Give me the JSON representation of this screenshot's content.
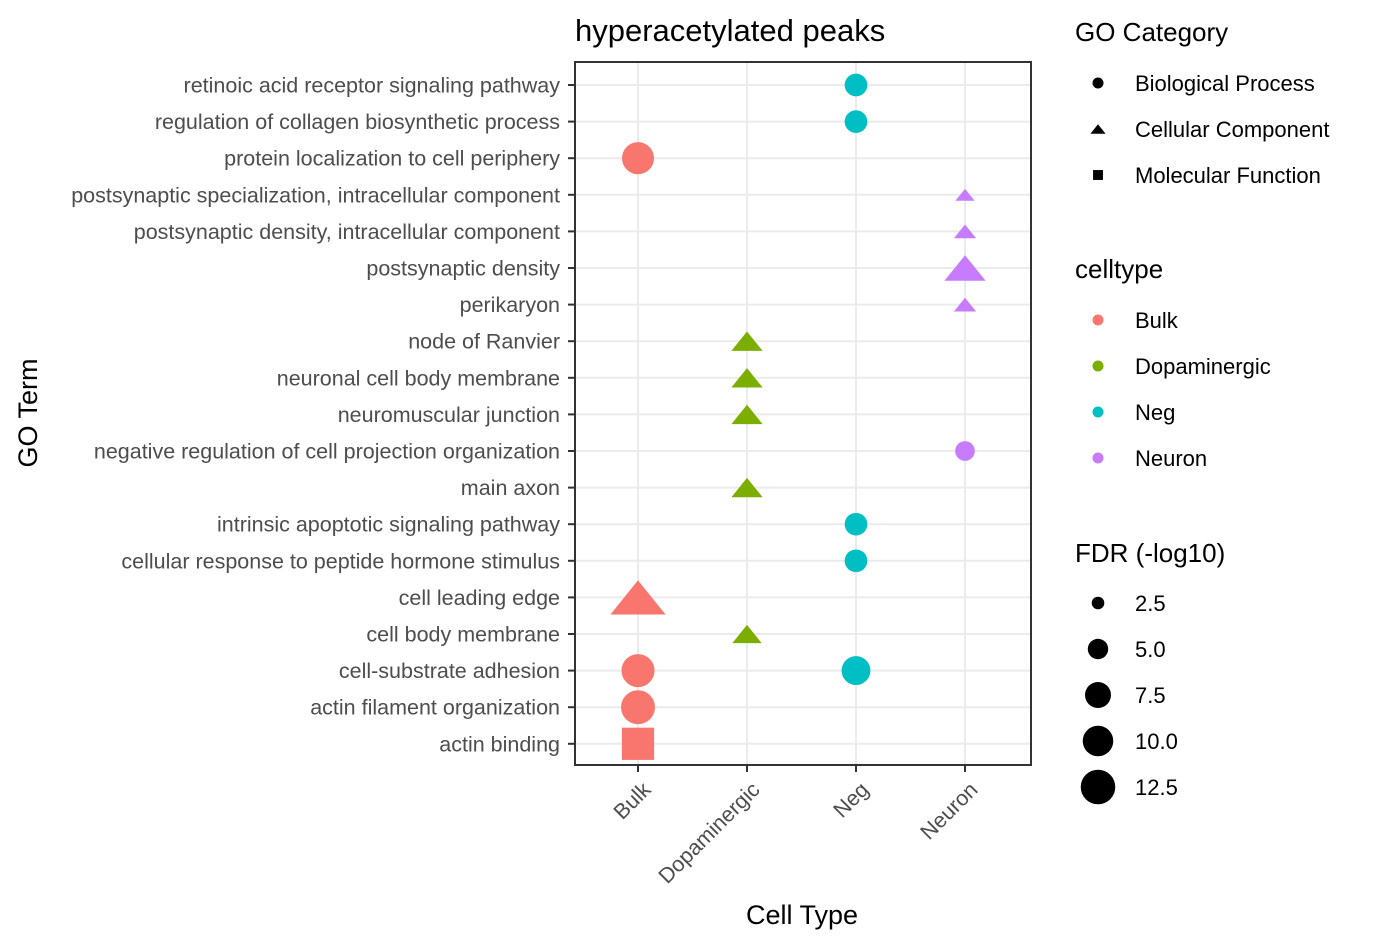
{
  "chart_data": {
    "type": "scatter",
    "title": "hyperacetylated peaks",
    "xlabel": "Cell Type",
    "ylabel": "GO Term",
    "categories": [
      "Bulk",
      "Dopaminergic",
      "Neg",
      "Neuron"
    ],
    "terms": [
      "retinoic acid receptor signaling pathway",
      "regulation of collagen biosynthetic process",
      "protein localization to cell periphery",
      "postsynaptic specialization, intracellular component",
      "postsynaptic density, intracellular component",
      "postsynaptic density",
      "perikaryon",
      "node of Ranvier",
      "neuronal cell body membrane",
      "neuromuscular junction",
      "negative regulation of cell projection organization",
      "main axon",
      "intrinsic apoptotic signaling pathway",
      "cellular response to peptide hormone stimulus",
      "cell leading edge",
      "cell body membrane",
      "cell-substrate adhesion",
      "actin filament organization",
      "actin binding"
    ],
    "points": [
      {
        "term": "retinoic acid receptor signaling pathway",
        "celltype": "Neg",
        "category": "Biological Process",
        "fdr": 5.0
      },
      {
        "term": "regulation of collagen biosynthetic process",
        "celltype": "Neg",
        "category": "Biological Process",
        "fdr": 5.0
      },
      {
        "term": "protein localization to cell periphery",
        "celltype": "Bulk",
        "category": "Biological Process",
        "fdr": 9.0
      },
      {
        "term": "postsynaptic specialization, intracellular component",
        "celltype": "Neuron",
        "category": "Cellular Component",
        "fdr": 2.5
      },
      {
        "term": "postsynaptic density, intracellular component",
        "celltype": "Neuron",
        "category": "Cellular Component",
        "fdr": 3.0
      },
      {
        "term": "postsynaptic density",
        "celltype": "Neuron",
        "category": "Cellular Component",
        "fdr": 8.0
      },
      {
        "term": "perikaryon",
        "celltype": "Neuron",
        "category": "Cellular Component",
        "fdr": 3.0
      },
      {
        "term": "node of Ranvier",
        "celltype": "Dopaminergic",
        "category": "Cellular Component",
        "fdr": 5.0
      },
      {
        "term": "neuronal cell body membrane",
        "celltype": "Dopaminergic",
        "category": "Cellular Component",
        "fdr": 5.0
      },
      {
        "term": "neuromuscular junction",
        "celltype": "Dopaminergic",
        "category": "Cellular Component",
        "fdr": 5.0
      },
      {
        "term": "negative regulation of cell projection organization",
        "celltype": "Neuron",
        "category": "Biological Process",
        "fdr": 4.0
      },
      {
        "term": "main axon",
        "celltype": "Dopaminergic",
        "category": "Cellular Component",
        "fdr": 5.0
      },
      {
        "term": "intrinsic apoptotic signaling pathway",
        "celltype": "Neg",
        "category": "Biological Process",
        "fdr": 5.0
      },
      {
        "term": "cellular response to peptide hormone stimulus",
        "celltype": "Neg",
        "category": "Biological Process",
        "fdr": 5.0
      },
      {
        "term": "cell leading edge",
        "celltype": "Bulk",
        "category": "Cellular Component",
        "fdr": 13.5
      },
      {
        "term": "cell body membrane",
        "celltype": "Dopaminergic",
        "category": "Cellular Component",
        "fdr": 4.5
      },
      {
        "term": "cell-substrate adhesion",
        "celltype": "Bulk",
        "category": "Biological Process",
        "fdr": 9.5
      },
      {
        "term": "cell-substrate adhesion",
        "celltype": "Neg",
        "category": "Biological Process",
        "fdr": 7.5
      },
      {
        "term": "actin filament organization",
        "celltype": "Bulk",
        "category": "Biological Process",
        "fdr": 10.0
      },
      {
        "term": "actin binding",
        "celltype": "Bulk",
        "category": "Molecular Function",
        "fdr": 11.0
      }
    ],
    "legends": {
      "shape": {
        "title": "GO Category",
        "entries": [
          {
            "label": "Biological Process",
            "shape": "circle"
          },
          {
            "label": "Cellular Component",
            "shape": "triangle"
          },
          {
            "label": "Molecular Function",
            "shape": "square"
          }
        ]
      },
      "color": {
        "title": "celltype",
        "entries": [
          {
            "label": "Bulk",
            "color": "#F8766D"
          },
          {
            "label": "Dopaminergic",
            "color": "#7CAE00"
          },
          {
            "label": "Neg",
            "color": "#00BFC4"
          },
          {
            "label": "Neuron",
            "color": "#C77CFF"
          }
        ]
      },
      "size": {
        "title": "FDR (-log10)",
        "entries": [
          {
            "label": "2.5",
            "value": 2.5
          },
          {
            "label": "5.0",
            "value": 5.0
          },
          {
            "label": "7.5",
            "value": 7.5
          },
          {
            "label": "10.0",
            "value": 10.0
          },
          {
            "label": "12.5",
            "value": 12.5
          }
        ]
      }
    },
    "fdr_range": [
      2.5,
      13.5
    ],
    "grid": true,
    "legend_position": "right"
  }
}
